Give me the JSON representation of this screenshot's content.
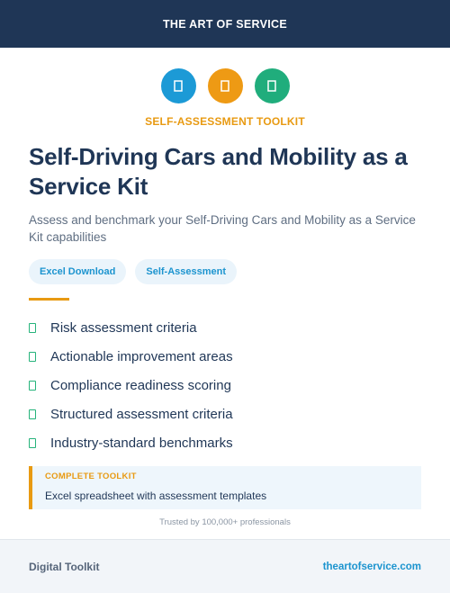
{
  "header": {
    "brand": "THE ART OF SERVICE",
    "color": "#1f3656"
  },
  "icons": [
    {
      "name": "doc-icon",
      "color": "#1c9ad6"
    },
    {
      "name": "doc-icon",
      "color": "#ee9a14"
    },
    {
      "name": "doc-icon",
      "color": "#20ad7c"
    }
  ],
  "kicker": "SELF-ASSESSMENT TOOLKIT",
  "title": "Self-Driving Cars and Mobility as a Service Kit",
  "subtitle": "Assess and benchmark your Self-Driving Cars and Mobility as a Service Kit capabilities",
  "tags": [
    "Excel Download",
    "Self-Assessment"
  ],
  "features": [
    "Risk assessment criteria",
    "Actionable improvement areas",
    "Compliance readiness scoring",
    "Structured assessment criteria",
    "Industry-standard benchmarks"
  ],
  "callout": {
    "label": "COMPLETE TOOLKIT",
    "text": "Excel spreadsheet with assessment templates"
  },
  "trusted": "Trusted by 100,000+ professionals",
  "footer": {
    "label": "Digital Toolkit",
    "url": "theartofservice.com"
  },
  "colors": {
    "accent": "#e89a12",
    "link": "#1c94cf",
    "check": "#26b37b"
  }
}
